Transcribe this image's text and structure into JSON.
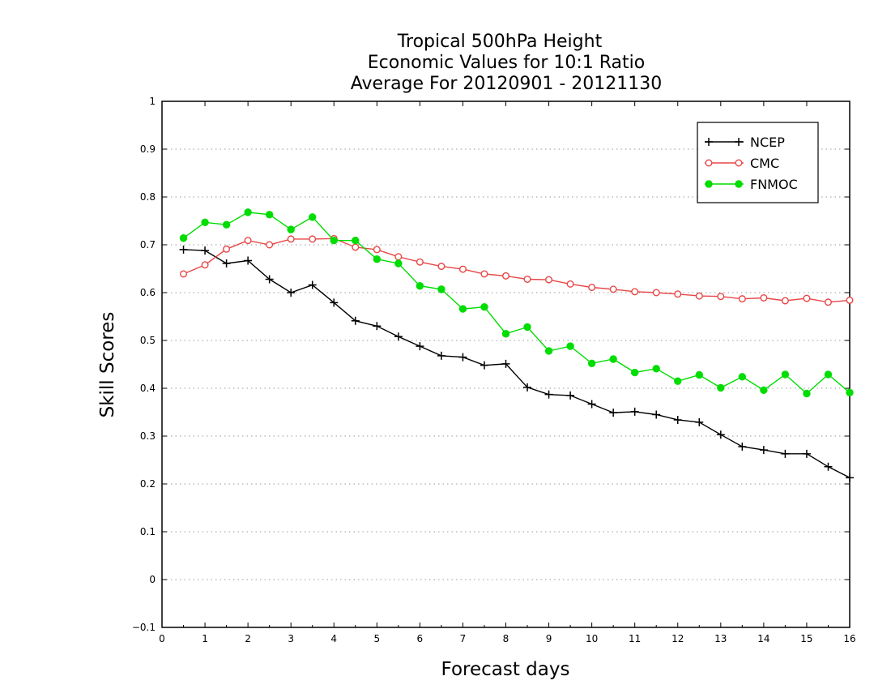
{
  "chart_data": {
    "type": "line",
    "title_lines": [
      "Tropical 500hPa Height",
      "Economic Values for 10:1 Ratio",
      "Average For 20120901 - 20121130"
    ],
    "xlabel": "Forecast days",
    "ylabel": "Skill Scores",
    "xlim": [
      0,
      16
    ],
    "ylim": [
      -0.1,
      1
    ],
    "xticks": [
      "0",
      "1",
      "2",
      "3",
      "4",
      "5",
      "6",
      "7",
      "8",
      "9",
      "10",
      "11",
      "12",
      "13",
      "14",
      "15",
      "16"
    ],
    "yticks": [
      "−0.1",
      "0",
      "0.1",
      "0.2",
      "0.3",
      "0.4",
      "0.5",
      "0.6",
      "0.7",
      "0.8",
      "0.9",
      "1"
    ],
    "grid": "horizontal-dotted",
    "legend_position": "top-right",
    "x": [
      0.5,
      1,
      1.5,
      2,
      2.5,
      3,
      3.5,
      4,
      4.5,
      5,
      5.5,
      6,
      6.5,
      7,
      7.5,
      8,
      8.5,
      9,
      9.5,
      10,
      10.5,
      11,
      11.5,
      12,
      12.5,
      13,
      13.5,
      14,
      14.5,
      15,
      15.5,
      16
    ],
    "series": [
      {
        "name": "NCEP",
        "color": "#000000",
        "marker": "plus",
        "values": [
          0.69,
          0.688,
          0.661,
          0.667,
          0.628,
          0.6,
          0.616,
          0.579,
          0.541,
          0.53,
          0.508,
          0.488,
          0.468,
          0.465,
          0.448,
          0.451,
          0.402,
          0.387,
          0.385,
          0.367,
          0.349,
          0.351,
          0.345,
          0.334,
          0.329,
          0.303,
          0.278,
          0.271,
          0.263,
          0.263,
          0.236,
          0.213
        ]
      },
      {
        "name": "CMC",
        "color": "#e84646",
        "marker": "open-circle",
        "values": [
          0.639,
          0.658,
          0.691,
          0.709,
          0.7,
          0.712,
          0.712,
          0.713,
          0.695,
          0.69,
          0.675,
          0.664,
          0.655,
          0.649,
          0.639,
          0.635,
          0.628,
          0.627,
          0.618,
          0.611,
          0.607,
          0.602,
          0.6,
          0.597,
          0.593,
          0.592,
          0.587,
          0.589,
          0.583,
          0.588,
          0.58,
          0.584
        ]
      },
      {
        "name": "FNMOC",
        "color": "#00dd00",
        "marker": "filled-circle",
        "values": [
          0.714,
          0.747,
          0.742,
          0.768,
          0.763,
          0.732,
          0.758,
          0.709,
          0.709,
          0.67,
          0.661,
          0.614,
          0.607,
          0.566,
          0.57,
          0.514,
          0.528,
          0.478,
          0.488,
          0.452,
          0.461,
          0.433,
          0.441,
          0.415,
          0.428,
          0.401,
          0.424,
          0.396,
          0.429,
          0.389,
          0.429,
          0.391
        ]
      }
    ]
  }
}
